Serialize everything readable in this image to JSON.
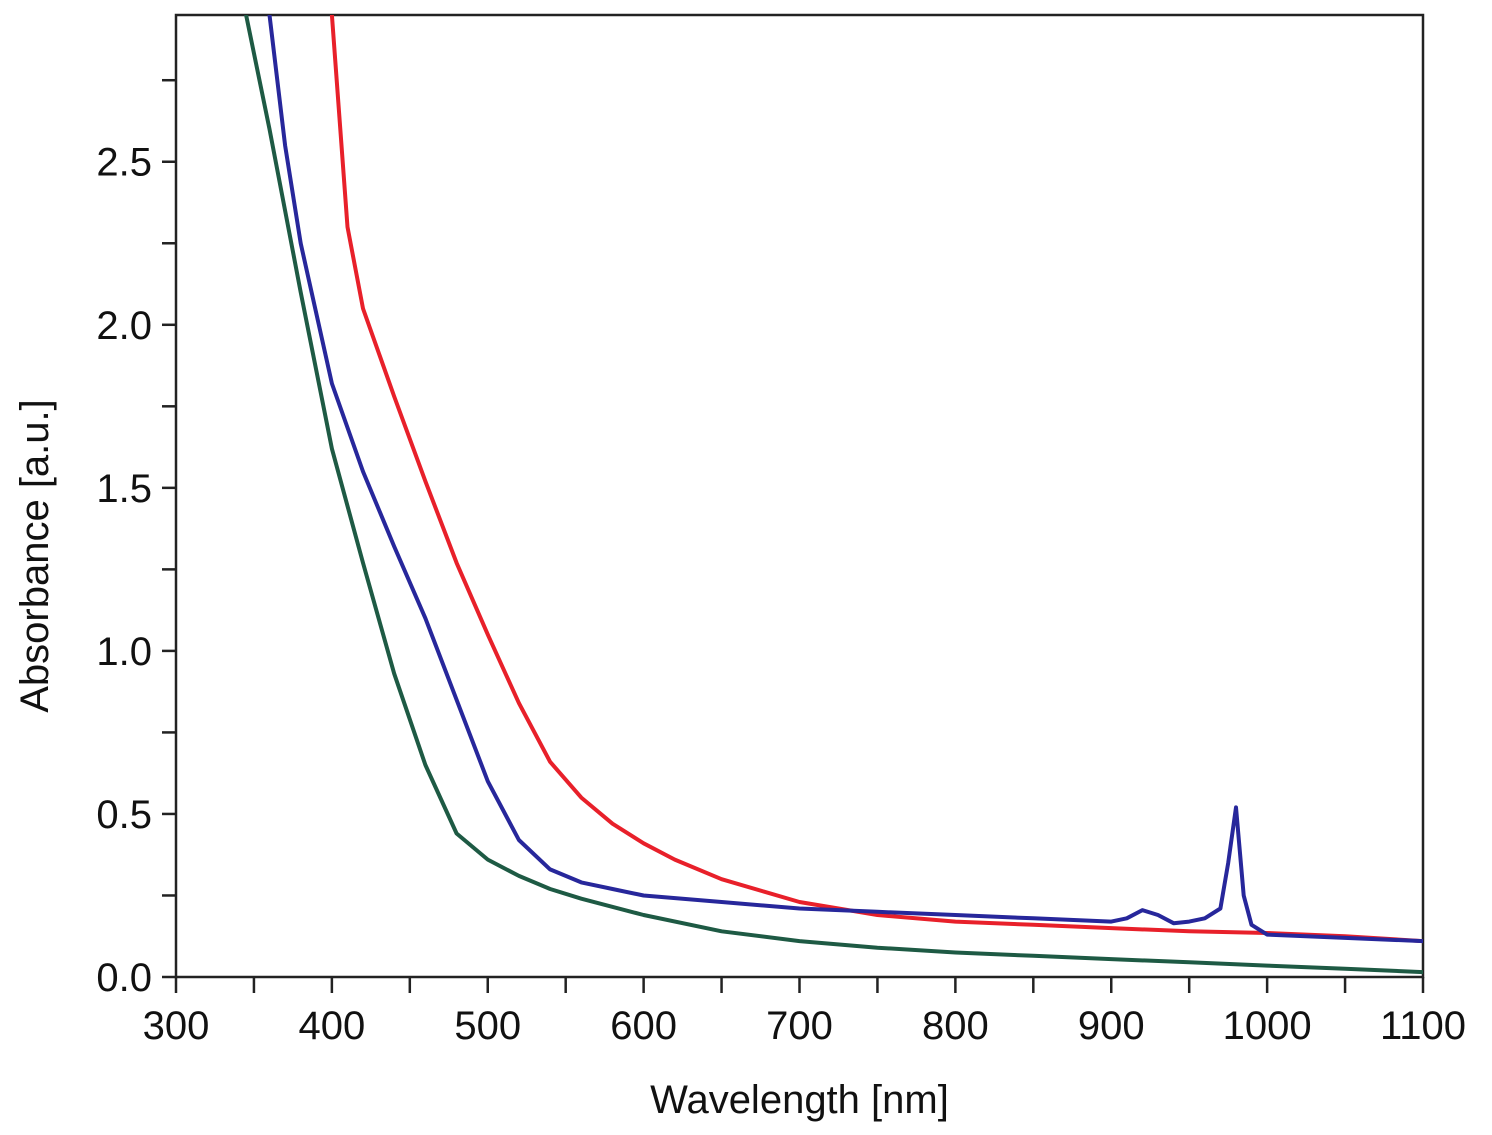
{
  "chart_data": {
    "type": "line",
    "title": "",
    "xlabel": "Wavelength [nm]",
    "ylabel": "Absorbance [a.u.]",
    "xlim": [
      300,
      1100
    ],
    "ylim": [
      0,
      2.95
    ],
    "grid": false,
    "legend": "none",
    "x_ticks": [
      300,
      400,
      500,
      600,
      700,
      800,
      900,
      1000,
      1100
    ],
    "x_tick_labels": [
      "300",
      "400",
      "500",
      "600",
      "700",
      "800",
      "900",
      "1000",
      "1100"
    ],
    "x_minor_ticks": [
      350,
      450,
      550,
      650,
      750,
      850,
      950,
      1050
    ],
    "y_ticks": [
      0.0,
      0.5,
      1.0,
      1.5,
      2.0,
      2.5
    ],
    "y_tick_labels": [
      "0.0",
      "0.5",
      "1.0",
      "1.5",
      "2.0",
      "2.5"
    ],
    "y_minor_ticks": [
      0.25,
      0.75,
      1.25,
      1.75,
      2.25,
      2.75
    ],
    "series": [
      {
        "color": "#e8202a",
        "x": [
          400,
          410,
          420,
          440,
          460,
          480,
          500,
          520,
          540,
          560,
          580,
          600,
          620,
          650,
          700,
          750,
          800,
          850,
          900,
          950,
          1000,
          1050,
          1100
        ],
        "y": [
          2.95,
          2.3,
          2.05,
          1.78,
          1.52,
          1.27,
          1.05,
          0.84,
          0.66,
          0.55,
          0.47,
          0.41,
          0.36,
          0.3,
          0.23,
          0.19,
          0.17,
          0.16,
          0.15,
          0.14,
          0.135,
          0.125,
          0.11
        ]
      },
      {
        "color": "#27279b",
        "x": [
          360,
          370,
          380,
          400,
          420,
          440,
          460,
          480,
          500,
          520,
          540,
          560,
          580,
          600,
          650,
          700,
          750,
          800,
          850,
          900,
          910,
          920,
          930,
          940,
          950,
          960,
          970,
          975,
          980,
          985,
          990,
          1000,
          1050,
          1100
        ],
        "y": [
          2.95,
          2.55,
          2.25,
          1.82,
          1.55,
          1.32,
          1.1,
          0.85,
          0.6,
          0.42,
          0.33,
          0.29,
          0.27,
          0.25,
          0.23,
          0.21,
          0.2,
          0.19,
          0.18,
          0.17,
          0.18,
          0.205,
          0.19,
          0.165,
          0.17,
          0.18,
          0.21,
          0.35,
          0.52,
          0.25,
          0.16,
          0.13,
          0.12,
          0.11
        ]
      },
      {
        "color": "#1e5a44",
        "x": [
          345,
          360,
          380,
          400,
          420,
          440,
          460,
          480,
          500,
          520,
          540,
          560,
          600,
          650,
          700,
          750,
          800,
          850,
          900,
          950,
          1000,
          1050,
          1100
        ],
        "y": [
          2.95,
          2.6,
          2.1,
          1.62,
          1.27,
          0.93,
          0.65,
          0.44,
          0.36,
          0.31,
          0.27,
          0.24,
          0.19,
          0.14,
          0.11,
          0.09,
          0.075,
          0.065,
          0.055,
          0.045,
          0.035,
          0.025,
          0.015
        ]
      }
    ]
  }
}
